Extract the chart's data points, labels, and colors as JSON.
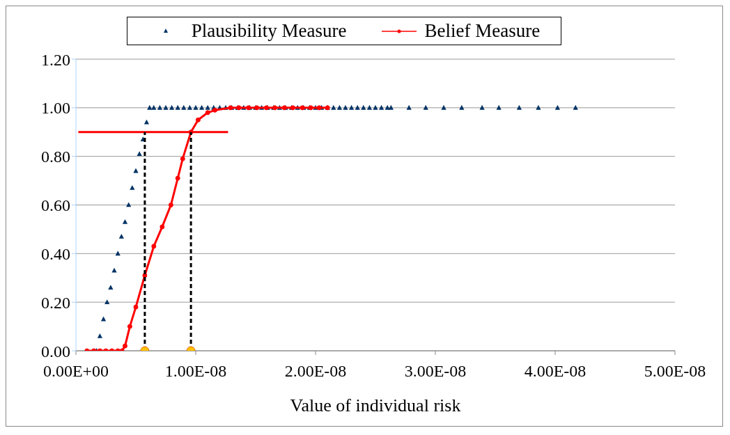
{
  "chart_data": {
    "type": "scatter",
    "xlabel": "Value of individual risk",
    "xlim": [
      0,
      5e-08
    ],
    "xticks": [
      {
        "value": 0,
        "label": "0.00E+00"
      },
      {
        "value": 1e-08,
        "label": "1.00E-08"
      },
      {
        "value": 2e-08,
        "label": "2.00E-08"
      },
      {
        "value": 3e-08,
        "label": "3.00E-08"
      },
      {
        "value": 4e-08,
        "label": "4.00E-08"
      },
      {
        "value": 5e-08,
        "label": "5.00E-08"
      }
    ],
    "ylim": [
      0,
      1.2
    ],
    "yticks": [
      {
        "value": 0,
        "label": "0.00"
      },
      {
        "value": 0.2,
        "label": "0.20"
      },
      {
        "value": 0.4,
        "label": "0.40"
      },
      {
        "value": 0.6,
        "label": "0.60"
      },
      {
        "value": 0.8,
        "label": "0.80"
      },
      {
        "value": 1,
        "label": "1.00"
      },
      {
        "value": 1.2,
        "label": "1.20"
      }
    ],
    "grid": "y",
    "legend": "top",
    "series": [
      {
        "name": "Plausibility Measure",
        "marker": "triangle",
        "color": "#003366",
        "x": [
          1.72e-09,
          2e-09,
          2.3e-09,
          2.6e-09,
          2.9e-09,
          3.2e-09,
          3.5e-09,
          3.8e-09,
          4.1e-09,
          4.4e-09,
          4.7e-09,
          5e-09,
          5.3e-09,
          5.6e-09,
          5.9e-09,
          6.15e-09,
          6.5e-09,
          7e-09,
          7.5e-09,
          8e-09,
          8.5e-09,
          9e-09,
          9.5e-09,
          1e-08,
          1.05e-08,
          1.1e-08,
          1.15e-08,
          1.2e-08,
          1.25e-08,
          1.3e-08,
          1.35e-08,
          1.4e-08,
          1.45e-08,
          1.5e-08,
          1.55e-08,
          1.6e-08,
          1.65e-08,
          1.7e-08,
          1.75e-08,
          1.8e-08,
          1.85e-08,
          1.9e-08,
          1.95e-08,
          2e-08,
          2.05e-08,
          2.1e-08,
          2.15e-08,
          2.2e-08,
          2.25e-08,
          2.3e-08,
          2.35e-08,
          2.4e-08,
          2.45e-08,
          2.5e-08,
          2.55e-08,
          2.6e-08,
          2.63e-08,
          2.78e-08,
          2.92e-08,
          3.07e-08,
          3.22e-08,
          3.39e-08,
          3.53e-08,
          3.7e-08,
          3.86e-08,
          4.02e-08,
          4.17e-08
        ],
        "values": [
          0,
          0.06,
          0.13,
          0.2,
          0.26,
          0.33,
          0.4,
          0.47,
          0.53,
          0.6,
          0.67,
          0.74,
          0.81,
          0.87,
          0.94,
          1,
          1,
          1,
          1,
          1,
          1,
          1,
          1,
          1,
          1,
          1,
          1,
          1,
          1,
          1,
          1,
          1,
          1,
          1,
          1,
          1,
          1,
          1,
          1,
          1,
          1,
          1,
          1,
          1,
          1,
          1,
          1,
          1,
          1,
          1,
          1,
          1,
          1,
          1,
          1,
          1,
          1,
          1,
          1,
          1,
          1,
          1,
          1,
          1,
          1,
          1,
          1
        ]
      },
      {
        "name": "Belief Measure",
        "type": "line",
        "marker": "circle",
        "color": "#ff0000",
        "x": [
          9.2e-10,
          1.5e-09,
          2e-09,
          2.5e-09,
          3e-09,
          3.5e-09,
          3.85e-09,
          4.1e-09,
          4.5e-09,
          5e-09,
          5.75e-09,
          6.5e-09,
          7.2e-09,
          7.93e-09,
          8.5e-09,
          8.91e-09,
          9.6e-09,
          1.02e-08,
          1.1e-08,
          1.16e-08,
          1.29e-08,
          1.36e-08,
          1.44e-08,
          1.51e-08,
          1.59e-08,
          1.66e-08,
          1.74e-08,
          1.81e-08,
          1.89e-08,
          1.96e-08,
          2.03e-08,
          2.1e-08
        ],
        "values": [
          0,
          0,
          0,
          0,
          0,
          0,
          0,
          0.02,
          0.1,
          0.18,
          0.31,
          0.43,
          0.51,
          0.6,
          0.71,
          0.79,
          0.9,
          0.95,
          0.98,
          0.99,
          1,
          1,
          1,
          1,
          1,
          1,
          1,
          1,
          1,
          1,
          1,
          1
        ]
      },
      {
        "type": "line",
        "marker": "none",
        "color": "#ff0000",
        "x": [
          2e-10,
          1.27e-08
        ],
        "values": [
          0.9,
          0.9
        ]
      },
      {
        "type": "line",
        "marker": "none",
        "line_style": "dashed",
        "color": "#000000",
        "x": [
          5.75e-09,
          5.75e-09
        ],
        "values": [
          0,
          0.9
        ]
      },
      {
        "type": "line",
        "marker": "none",
        "line_style": "dashed",
        "color": "#000000",
        "x": [
          9.6e-09,
          9.6e-09
        ],
        "values": [
          0,
          0.9
        ]
      },
      {
        "type": "scatter",
        "marker": "circle",
        "color": "#ffc000",
        "x": [
          5.75e-09,
          9.6e-09
        ],
        "values": [
          0,
          0
        ]
      }
    ]
  }
}
